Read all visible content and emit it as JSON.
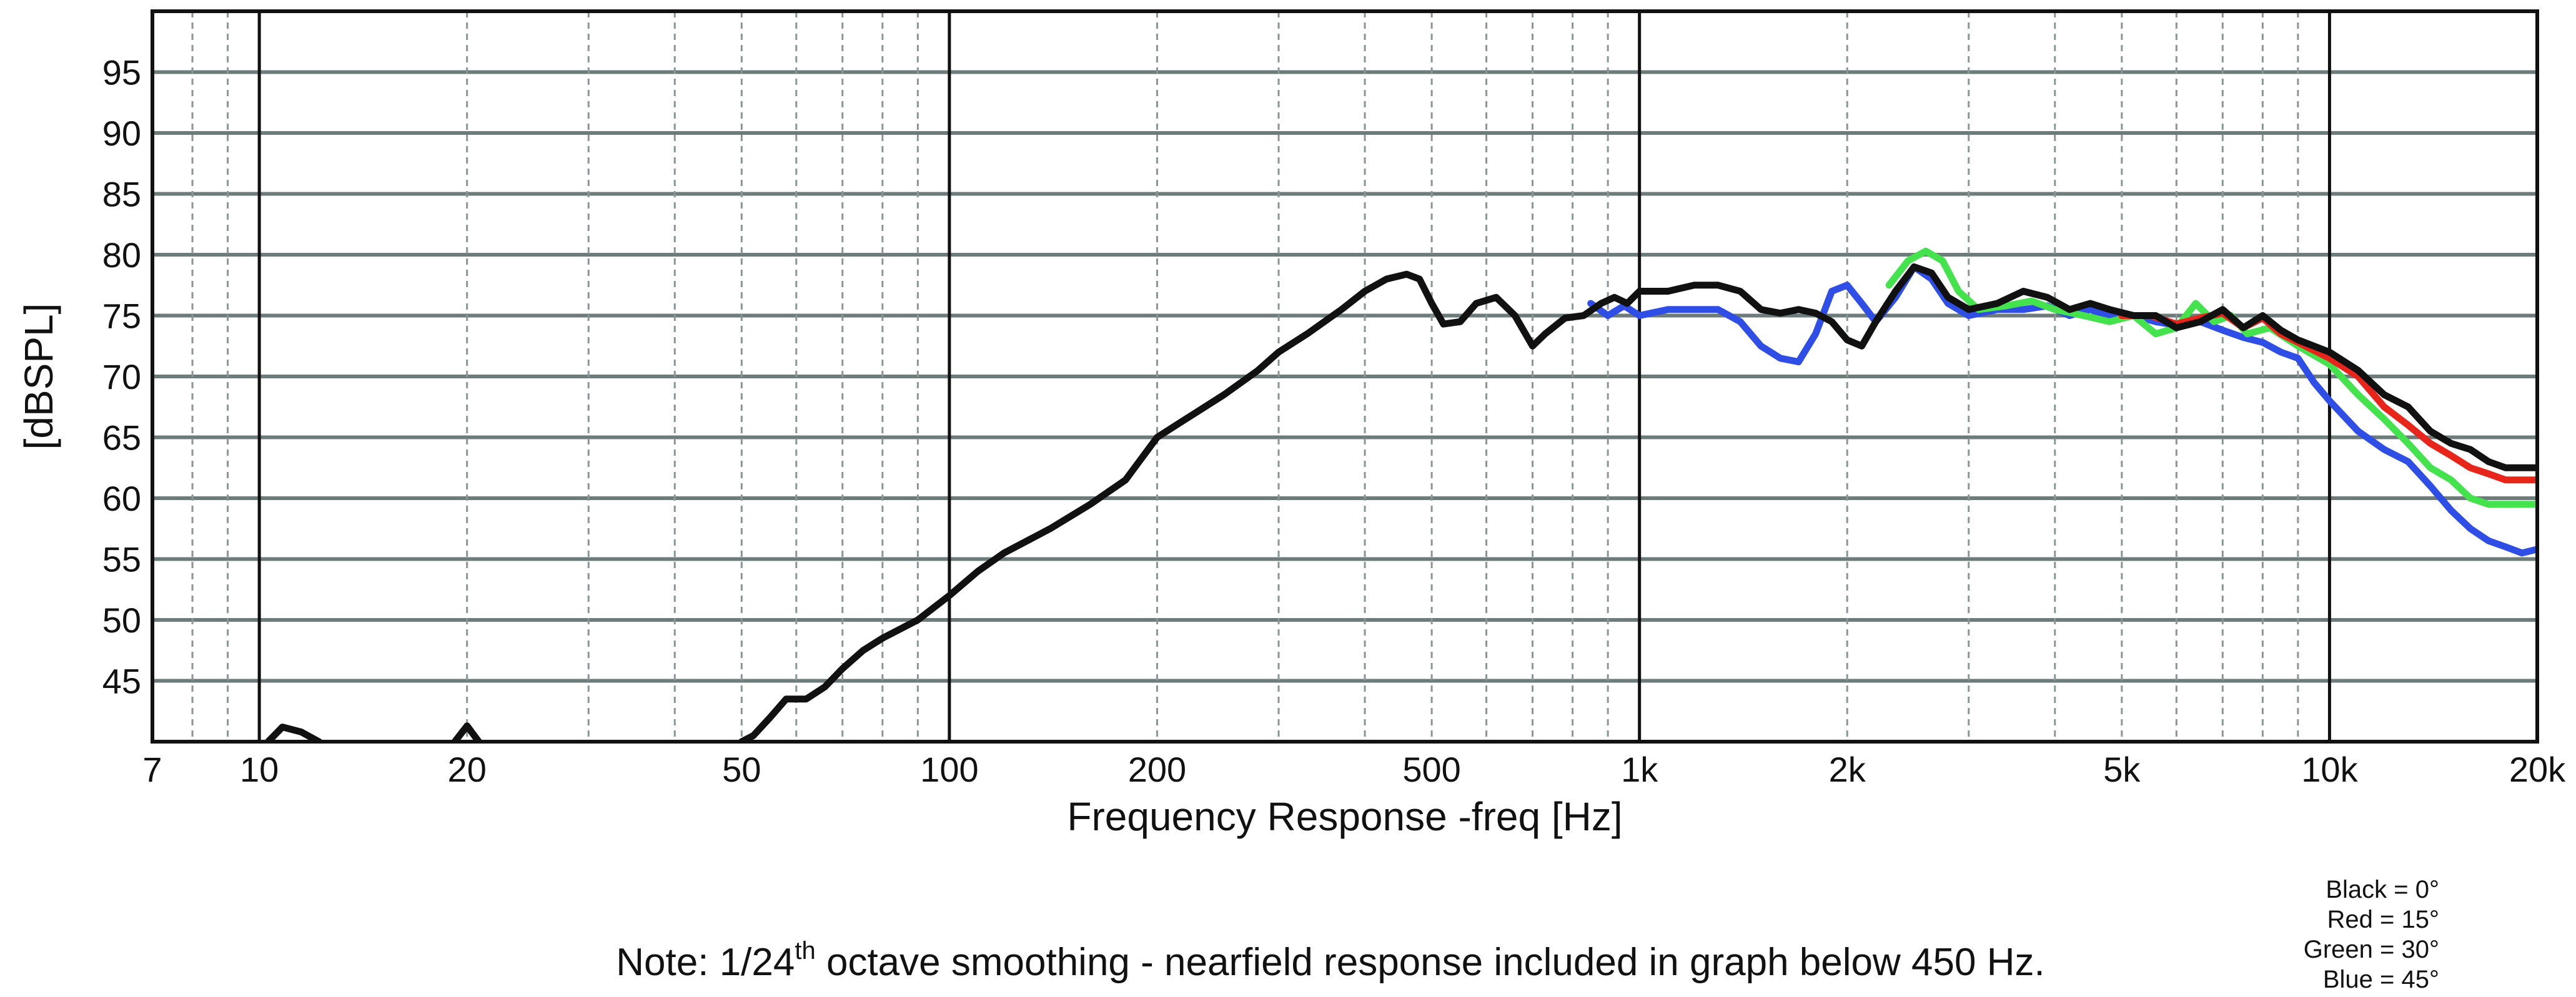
{
  "chart_data": {
    "type": "line",
    "xlabel": "Frequency Response -freq [Hz]",
    "ylabel": "[dBSPL]",
    "xscale": "log",
    "xlim": [
      7,
      20000
    ],
    "ylim": [
      40,
      100
    ],
    "grid": true,
    "legend_placement": "bottom-right",
    "x_ticks": [
      {
        "value": 7,
        "label": "7"
      },
      {
        "value": 10,
        "label": "10"
      },
      {
        "value": 20,
        "label": "20"
      },
      {
        "value": 50,
        "label": "50"
      },
      {
        "value": 100,
        "label": "100"
      },
      {
        "value": 200,
        "label": "200"
      },
      {
        "value": 500,
        "label": "500"
      },
      {
        "value": 1000,
        "label": "1k"
      },
      {
        "value": 2000,
        "label": "2k"
      },
      {
        "value": 5000,
        "label": "5k"
      },
      {
        "value": 10000,
        "label": "10k"
      },
      {
        "value": 20000,
        "label": "20k"
      }
    ],
    "y_ticks": [
      45,
      50,
      55,
      60,
      65,
      70,
      75,
      80,
      85,
      90,
      95
    ],
    "legend": [
      "Black = 0°",
      "Red = 15°",
      "Green = 30°",
      "Blue = 45°"
    ],
    "note": {
      "prefix": "Note: 1/24",
      "superscript": "th",
      "suffix": " octave smoothing - nearfield response included in graph below 450 Hz."
    },
    "series": [
      {
        "color": "#111111",
        "segments": [
          [
            [
              10.3,
              40
            ],
            [
              10.8,
              41.2
            ],
            [
              11.5,
              40.8
            ],
            [
              12.2,
              40
            ]
          ],
          [
            [
              19.2,
              40
            ],
            [
              20,
              41.3
            ],
            [
              20.8,
              40
            ]
          ],
          [
            [
              50,
              40
            ],
            [
              52,
              40.5
            ],
            [
              55,
              42
            ],
            [
              58,
              43.5
            ],
            [
              62,
              43.5
            ],
            [
              66,
              44.5
            ],
            [
              70,
              46
            ],
            [
              75,
              47.5
            ],
            [
              80,
              48.5
            ],
            [
              90,
              50
            ],
            [
              100,
              52
            ],
            [
              110,
              54
            ],
            [
              120,
              55.5
            ],
            [
              140,
              57.5
            ],
            [
              160,
              59.5
            ],
            [
              180,
              61.5
            ],
            [
              200,
              65
            ],
            [
              220,
              66.5
            ],
            [
              250,
              68.5
            ],
            [
              280,
              70.5
            ],
            [
              300,
              72
            ],
            [
              330,
              73.5
            ],
            [
              370,
              75.5
            ],
            [
              400,
              77
            ],
            [
              430,
              78
            ],
            [
              460,
              78.4
            ],
            [
              480,
              78
            ],
            [
              500,
              76
            ],
            [
              520,
              74.3
            ],
            [
              550,
              74.5
            ],
            [
              580,
              76
            ],
            [
              620,
              76.5
            ],
            [
              660,
              75
            ],
            [
              700,
              72.5
            ],
            [
              730,
              73.5
            ],
            [
              780,
              74.8
            ],
            [
              830,
              75
            ],
            [
              880,
              76
            ],
            [
              920,
              76.5
            ],
            [
              960,
              76
            ],
            [
              1000,
              77
            ],
            [
              1100,
              77
            ],
            [
              1200,
              77.5
            ],
            [
              1300,
              77.5
            ],
            [
              1400,
              77
            ],
            [
              1500,
              75.5
            ],
            [
              1600,
              75.2
            ],
            [
              1700,
              75.5
            ],
            [
              1800,
              75.2
            ],
            [
              1900,
              74.5
            ],
            [
              2000,
              73
            ],
            [
              2100,
              72.5
            ],
            [
              2200,
              74.5
            ],
            [
              2350,
              77
            ],
            [
              2500,
              79
            ],
            [
              2650,
              78.5
            ],
            [
              2800,
              76.5
            ],
            [
              3000,
              75.5
            ],
            [
              3300,
              76
            ],
            [
              3600,
              77
            ],
            [
              3900,
              76.5
            ],
            [
              4200,
              75.5
            ],
            [
              4500,
              76
            ],
            [
              4800,
              75.5
            ],
            [
              5200,
              75
            ],
            [
              5600,
              75
            ],
            [
              6000,
              74
            ],
            [
              6500,
              74.5
            ],
            [
              7000,
              75.5
            ],
            [
              7500,
              74
            ],
            [
              8000,
              75
            ],
            [
              8500,
              73.8
            ],
            [
              9000,
              73
            ],
            [
              10000,
              72
            ],
            [
              11000,
              70.5
            ],
            [
              12000,
              68.5
            ],
            [
              13000,
              67.5
            ],
            [
              14000,
              65.5
            ],
            [
              15000,
              64.5
            ],
            [
              16000,
              64
            ],
            [
              17000,
              63
            ],
            [
              18000,
              62.5
            ],
            [
              19000,
              62.5
            ],
            [
              20000,
              62.5
            ]
          ]
        ]
      },
      {
        "color": "#e8251b",
        "segments": [
          [
            [
              5000,
              75
            ],
            [
              5500,
              75
            ],
            [
              6000,
              74.3
            ],
            [
              6500,
              74.8
            ],
            [
              7000,
              75.2
            ],
            [
              7500,
              74
            ],
            [
              8000,
              74.8
            ],
            [
              8500,
              73.5
            ],
            [
              9000,
              72.8
            ],
            [
              10000,
              71.5
            ],
            [
              11000,
              70
            ],
            [
              12000,
              67.5
            ],
            [
              13000,
              66
            ],
            [
              14000,
              64.5
            ],
            [
              15000,
              63.5
            ],
            [
              16000,
              62.5
            ],
            [
              17000,
              62
            ],
            [
              18000,
              61.5
            ],
            [
              19000,
              61.5
            ],
            [
              20000,
              61.5
            ]
          ]
        ]
      },
      {
        "color": "#44e24c",
        "segments": [
          [
            [
              2300,
              77.5
            ],
            [
              2450,
              79.5
            ],
            [
              2600,
              80.3
            ],
            [
              2750,
              79.5
            ],
            [
              2900,
              77
            ],
            [
              3100,
              75.5
            ],
            [
              3400,
              75.8
            ],
            [
              3700,
              76.2
            ],
            [
              4000,
              75.5
            ],
            [
              4400,
              75
            ],
            [
              4800,
              74.5
            ],
            [
              5200,
              75
            ],
            [
              5600,
              73.5
            ],
            [
              6000,
              74
            ],
            [
              6400,
              76
            ],
            [
              6800,
              74.5
            ],
            [
              7200,
              75
            ],
            [
              7600,
              73.5
            ],
            [
              8200,
              74
            ],
            [
              9000,
              72.5
            ],
            [
              10000,
              71
            ],
            [
              11000,
              68.5
            ],
            [
              12000,
              66.5
            ],
            [
              13000,
              64.5
            ],
            [
              14000,
              62.5
            ],
            [
              15000,
              61.5
            ],
            [
              16000,
              60
            ],
            [
              17000,
              59.5
            ],
            [
              18000,
              59.5
            ],
            [
              19000,
              59.5
            ],
            [
              20000,
              59.5
            ]
          ]
        ]
      },
      {
        "color": "#2e4ee6",
        "segments": [
          [
            [
              850,
              76
            ],
            [
              900,
              75
            ],
            [
              950,
              75.8
            ],
            [
              1000,
              75
            ],
            [
              1100,
              75.5
            ],
            [
              1200,
              75.5
            ],
            [
              1300,
              75.5
            ],
            [
              1400,
              74.5
            ],
            [
              1500,
              72.5
            ],
            [
              1600,
              71.5
            ],
            [
              1700,
              71.2
            ],
            [
              1800,
              73.5
            ],
            [
              1900,
              77
            ],
            [
              2000,
              77.5
            ],
            [
              2100,
              76
            ],
            [
              2200,
              74.5
            ],
            [
              2350,
              76.5
            ],
            [
              2500,
              79
            ],
            [
              2650,
              78
            ],
            [
              2800,
              76
            ],
            [
              3000,
              75
            ],
            [
              3300,
              75.5
            ],
            [
              3600,
              75.5
            ],
            [
              3900,
              75.8
            ],
            [
              4200,
              75
            ],
            [
              4500,
              75.5
            ],
            [
              4800,
              75
            ],
            [
              5200,
              75
            ],
            [
              5600,
              74.5
            ],
            [
              6000,
              74.2
            ],
            [
              6500,
              74.5
            ],
            [
              7000,
              73.8
            ],
            [
              7500,
              73.2
            ],
            [
              8000,
              72.8
            ],
            [
              8500,
              72
            ],
            [
              9000,
              71.5
            ],
            [
              9500,
              69.5
            ],
            [
              10000,
              68
            ],
            [
              11000,
              65.5
            ],
            [
              12000,
              64
            ],
            [
              13000,
              63
            ],
            [
              14000,
              61
            ],
            [
              15000,
              59
            ],
            [
              16000,
              57.5
            ],
            [
              17000,
              56.5
            ],
            [
              18000,
              56
            ],
            [
              19000,
              55.5
            ],
            [
              20000,
              55.8
            ]
          ]
        ]
      }
    ]
  }
}
